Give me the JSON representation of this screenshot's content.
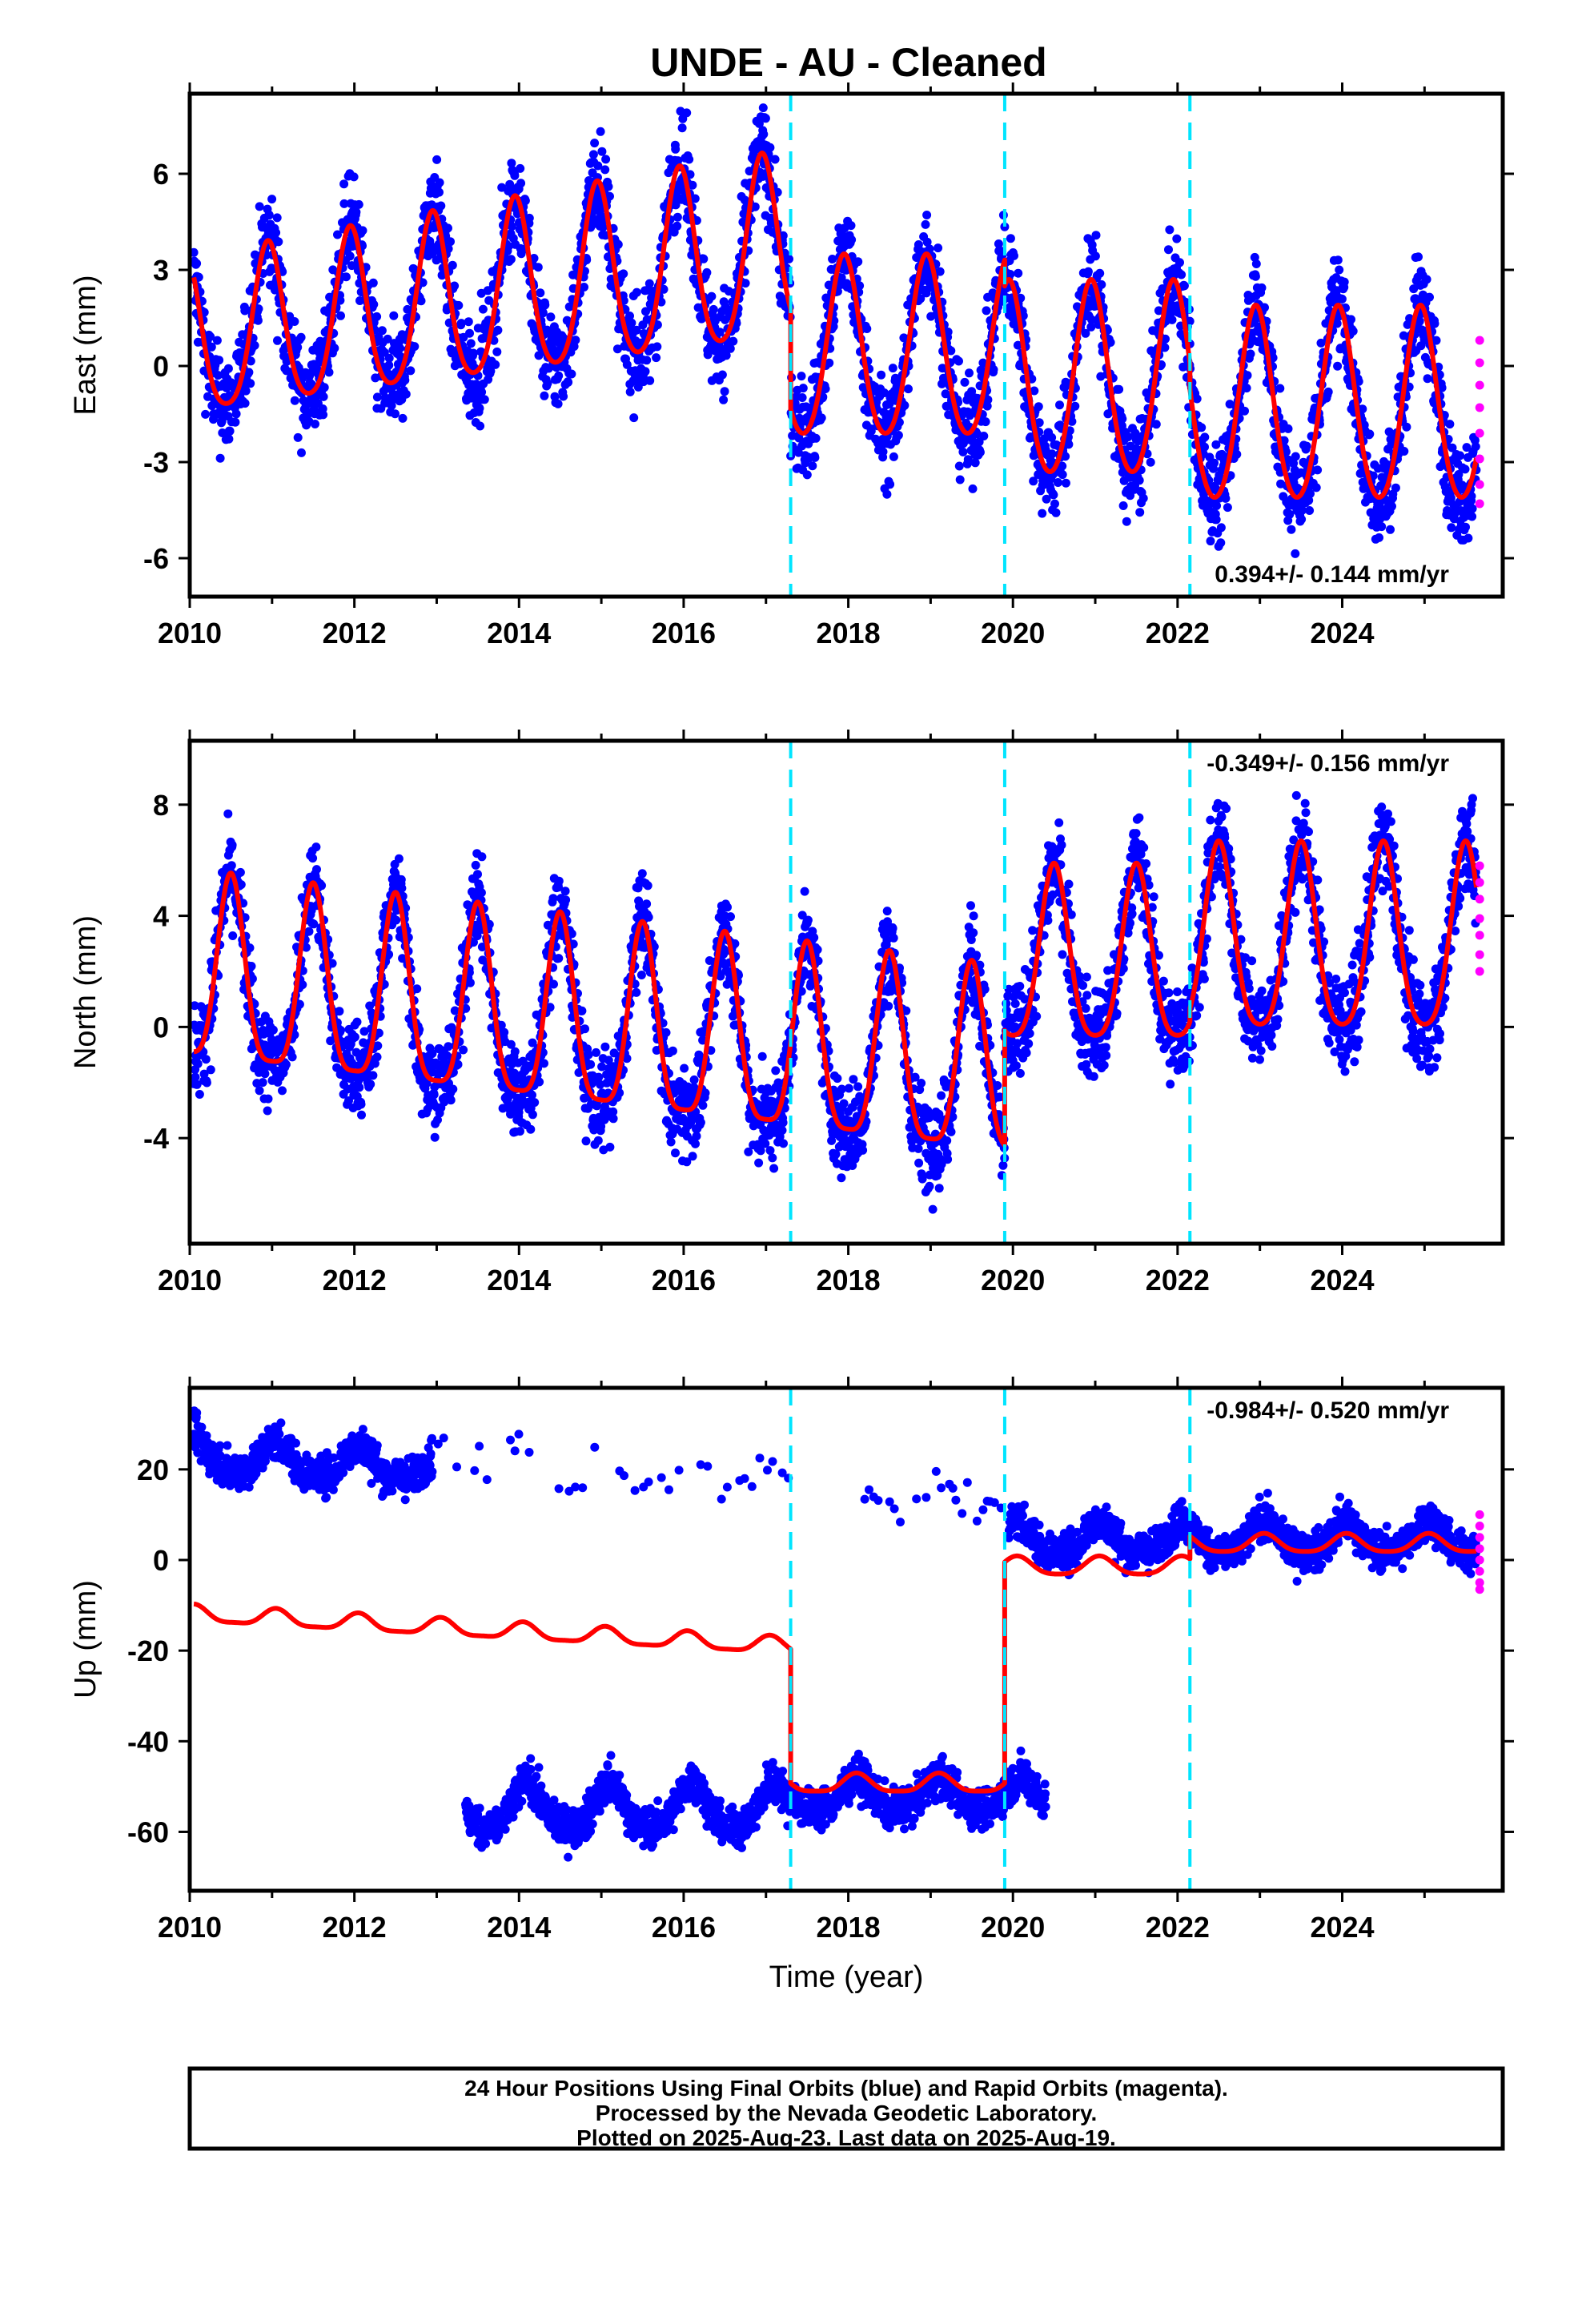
{
  "title": "UNDE  - AU - Cleaned",
  "chart_data": [
    {
      "type": "scatter",
      "ylabel": "East (mm)",
      "xlabel": "",
      "xlim": [
        2010.0,
        2025.95
      ],
      "ylim": [
        -7.2,
        8.5
      ],
      "xticks": [
        2010,
        2012,
        2014,
        2016,
        2018,
        2020,
        2022,
        2024
      ],
      "yticks": [
        -6,
        -3,
        0,
        3,
        6
      ],
      "ytick_labels": [
        "-6",
        "-3",
        "0",
        "3",
        "6"
      ],
      "rate_label": "0.394+/- 0.144 mm/yr",
      "rate_position": "bottom-right",
      "breaks": [
        2017.3,
        2019.9,
        2022.15
      ],
      "series": [
        {
          "role": "observations",
          "color": "#0000ff",
          "model": {
            "segments": [
              {
                "x0": 2010.05,
                "x1": 2017.3,
                "offset": 0.7,
                "trend": 0.394,
                "trend_ref": 2010.05,
                "annual": 2.4,
                "growth": 0.18,
                "phase_peak": 0.95,
                "semi": 0.4
              },
              {
                "x0": 2017.3,
                "x1": 2019.9,
                "offset": 0.4,
                "trend": 0.0,
                "trend_ref": 2017.3,
                "annual": 2.8,
                "growth": 0.0,
                "phase_peak": 0.95,
                "semi": 0.3
              },
              {
                "x0": 2019.9,
                "x1": 2022.15,
                "offset": -0.6,
                "trend": 0.0,
                "trend_ref": 2019.9,
                "annual": 3.0,
                "growth": 0.0,
                "phase_peak": 0.95,
                "semi": 0.3
              },
              {
                "x0": 2022.15,
                "x1": 2025.63,
                "offset": -1.4,
                "trend": 0.0,
                "trend_ref": 2022.15,
                "annual": 3.0,
                "growth": 0.0,
                "phase_peak": 0.95,
                "semi": 0.3
              }
            ],
            "noise": 1.1
          }
        },
        {
          "role": "rapid",
          "color": "#ff00ff",
          "x": 2025.67,
          "y": [
            0.8,
            0.1,
            -0.6,
            -1.3,
            -2.1,
            -2.9,
            -3.7,
            -4.3
          ]
        },
        {
          "role": "fit",
          "color": "#ff0000"
        }
      ]
    },
    {
      "type": "scatter",
      "ylabel": "North (mm)",
      "xlabel": "",
      "xlim": [
        2010.0,
        2025.95
      ],
      "ylim": [
        -7.8,
        10.3
      ],
      "xticks": [
        2010,
        2012,
        2014,
        2016,
        2018,
        2020,
        2022,
        2024
      ],
      "yticks": [
        -4,
        0,
        4,
        8
      ],
      "ytick_labels": [
        "-4",
        "0",
        "4",
        "8"
      ],
      "rate_label": "-0.349+/- 0.156 mm/yr",
      "rate_position": "top-right",
      "breaks": [
        2017.3,
        2019.9,
        2022.15
      ],
      "series": [
        {
          "role": "observations",
          "color": "#0000ff",
          "model": {
            "segments": [
              {
                "x0": 2010.05,
                "x1": 2019.9,
                "offset": 1.6,
                "trend": -0.349,
                "trend_ref": 2010.05,
                "annual": 3.3,
                "growth": 0.0,
                "phase_peak": 0.5,
                "semi": 0.8
              },
              {
                "x0": 2019.9,
                "x1": 2022.15,
                "offset": 2.2,
                "trend": 0.0,
                "trend_ref": 2019.9,
                "annual": 3.1,
                "growth": 0.0,
                "phase_peak": 0.5,
                "semi": 0.6
              },
              {
                "x0": 2022.15,
                "x1": 2025.63,
                "offset": 2.8,
                "trend": 0.0,
                "trend_ref": 2022.15,
                "annual": 3.3,
                "growth": 0.0,
                "phase_peak": 0.5,
                "semi": 0.6
              }
            ],
            "noise": 1.2
          }
        },
        {
          "role": "rapid",
          "color": "#ff00ff",
          "x": 2025.67,
          "y": [
            5.8,
            5.2,
            4.6,
            3.9,
            3.3,
            2.6,
            2.0
          ]
        },
        {
          "role": "fit",
          "color": "#ff0000"
        }
      ]
    },
    {
      "type": "scatter",
      "ylabel": "Up (mm)",
      "xlabel": "Time (year)",
      "xlim": [
        2010.0,
        2025.95
      ],
      "ylim": [
        -73.0,
        38.0
      ],
      "xticks": [
        2010,
        2012,
        2014,
        2016,
        2018,
        2020,
        2022,
        2024
      ],
      "yticks": [
        -60,
        -40,
        -20,
        0,
        20
      ],
      "ytick_labels": [
        "-60",
        "-40",
        "-20",
        "0",
        "20"
      ],
      "rate_label": "-0.984+/- 0.520 mm/yr",
      "rate_position": "top-right",
      "breaks": [
        2017.3,
        2019.9,
        2022.15
      ],
      "series": [
        {
          "role": "observations",
          "color": "#0000ff",
          "model": {
            "segments": [
              {
                "x0": 2010.05,
                "x1": 2012.95,
                "offset": 23.0,
                "trend": -0.9,
                "trend_ref": 2010.05,
                "annual": 3.5,
                "growth": 0.0,
                "phase_peak": 0.05,
                "semi": 0.8
              },
              {
                "x0": 2012.95,
                "x1": 2017.3,
                "offset": 21.5,
                "trend": -0.5,
                "trend_ref": 2012.95,
                "annual": 3.0,
                "growth": 0.0,
                "phase_peak": 0.05,
                "semi": 0.8,
                "density": 0.06
              },
              {
                "x0": 2013.35,
                "x1": 2017.3,
                "offset": -55.0,
                "trend": 0.0,
                "trend_ref": 2013.35,
                "annual": 5.0,
                "growth": 0.0,
                "phase_peak": 0.1,
                "semi": 1.0
              },
              {
                "x0": 2017.3,
                "x1": 2020.4,
                "offset": -52.0,
                "trend": 0.0,
                "trend_ref": 2017.3,
                "annual": 3.5,
                "growth": 0.0,
                "phase_peak": 0.1,
                "semi": 0.8
              },
              {
                "x0": 2018.2,
                "x1": 2019.9,
                "offset": 14.0,
                "trend": 0.0,
                "trend_ref": 2018.2,
                "annual": 2.5,
                "growth": 0.0,
                "phase_peak": 0.1,
                "semi": 0.5,
                "density": 0.08
              },
              {
                "x0": 2019.95,
                "x1": 2025.63,
                "offset": 4.5,
                "trend": 0.0,
                "trend_ref": 2019.95,
                "annual": 3.5,
                "growth": 0.0,
                "phase_peak": 0.05,
                "semi": 0.8
              }
            ],
            "noise": 3.0
          }
        },
        {
          "role": "rapid",
          "color": "#ff00ff",
          "x": 2025.67,
          "y": [
            10.0,
            7.5,
            5.0,
            2.5,
            0.0,
            -2.5,
            -5.0,
            -6.5
          ]
        },
        {
          "role": "fit",
          "color": "#ff0000",
          "segments": [
            {
              "x0": 2010.05,
              "x1": 2017.3,
              "offset": -12.0,
              "trend": -0.984,
              "trend_ref": 2010.05,
              "annual": 1.8,
              "phase_peak": 0.05,
              "semi": 0.5
            },
            {
              "x0": 2017.3,
              "x1": 2019.9,
              "offset": -49.5,
              "trend": 0.0,
              "trend_ref": 2017.3,
              "annual": 2.0,
              "phase_peak": 0.1,
              "semi": 0.5
            },
            {
              "x0": 2019.9,
              "x1": 2022.15,
              "offset": -1.5,
              "trend": 0.0,
              "trend_ref": 2019.9,
              "annual": 2.0,
              "phase_peak": 0.05,
              "semi": 0.4
            },
            {
              "x0": 2022.15,
              "x1": 2025.63,
              "offset": 3.5,
              "trend": 0.0,
              "trend_ref": 2022.15,
              "annual": 2.0,
              "phase_peak": 0.05,
              "semi": 0.4
            }
          ]
        }
      ]
    }
  ],
  "footer": {
    "line1": "24 Hour Positions Using Final Orbits (blue) and Rapid Orbits (magenta).",
    "line2": "Processed by the Nevada Geodetic Laboratory.",
    "line3": "Plotted on 2025-Aug-23. Last data on 2025-Aug-19."
  }
}
